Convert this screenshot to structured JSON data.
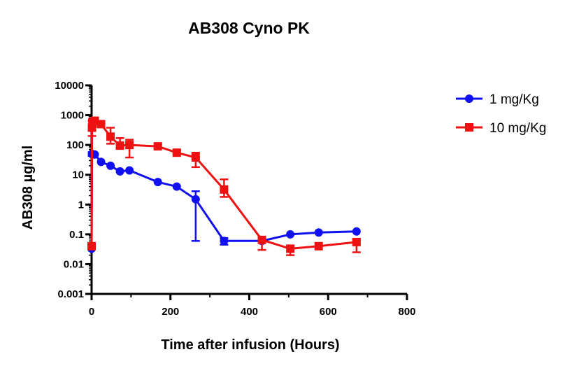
{
  "chart_data": {
    "type": "line",
    "title": "AB308 Cyno PK",
    "xlabel": "Time after infusion (Hours)",
    "ylabel": "AB308 µg/ml",
    "xlim": [
      0,
      800
    ],
    "ylim": [
      0.001,
      10000
    ],
    "yscale": "log",
    "x_ticks": [
      0,
      200,
      400,
      600,
      800
    ],
    "x_tick_labels": [
      "0",
      "200",
      "400",
      "600",
      "800"
    ],
    "y_ticks": [
      0.001,
      0.01,
      0.1,
      1,
      10,
      100,
      1000,
      10000
    ],
    "y_tick_labels": [
      "0.001",
      "0.01",
      "0.1",
      "1",
      "10",
      "100",
      "1000",
      "10000"
    ],
    "grid": false,
    "legend_position": "right",
    "series": [
      {
        "name": "1 mg/Kg",
        "color": "#1010f0",
        "marker": "circle",
        "points": [
          {
            "x": 0,
            "y": 0.033,
            "lo": null,
            "hi": null
          },
          {
            "x": 1,
            "y": 50,
            "lo": 43,
            "hi": 57
          },
          {
            "x": 8,
            "y": 48,
            "lo": null,
            "hi": null
          },
          {
            "x": 24,
            "y": 27,
            "lo": null,
            "hi": null
          },
          {
            "x": 48,
            "y": 20,
            "lo": null,
            "hi": null
          },
          {
            "x": 72,
            "y": 13,
            "lo": null,
            "hi": null
          },
          {
            "x": 96,
            "y": 14,
            "lo": null,
            "hi": null
          },
          {
            "x": 168,
            "y": 5.7,
            "lo": null,
            "hi": null
          },
          {
            "x": 216,
            "y": 4,
            "lo": null,
            "hi": null
          },
          {
            "x": 264,
            "y": 1.5,
            "lo": 0.06,
            "hi": 2.8
          },
          {
            "x": 336,
            "y": 0.06,
            "lo": 0.045,
            "hi": 0.075
          },
          {
            "x": 432,
            "y": 0.06,
            "lo": null,
            "hi": null
          },
          {
            "x": 504,
            "y": 0.1,
            "lo": null,
            "hi": null
          },
          {
            "x": 576,
            "y": 0.115,
            "lo": null,
            "hi": null
          },
          {
            "x": 672,
            "y": 0.125,
            "lo": null,
            "hi": null
          }
        ]
      },
      {
        "name": "10 mg/Kg",
        "color": "#ee1111",
        "marker": "square",
        "points": [
          {
            "x": 0,
            "y": 0.04,
            "lo": null,
            "hi": null
          },
          {
            "x": 1,
            "y": 380,
            "lo": 200,
            "hi": 650
          },
          {
            "x": 2,
            "y": 550,
            "lo": 400,
            "hi": 750
          },
          {
            "x": 8,
            "y": 650,
            "lo": 500,
            "hi": 800
          },
          {
            "x": 24,
            "y": 500,
            "lo": 400,
            "hi": 600
          },
          {
            "x": 48,
            "y": 190,
            "lo": 110,
            "hi": 380
          },
          {
            "x": 72,
            "y": 95,
            "lo": 75,
            "hi": 170
          },
          {
            "x": 96,
            "y": 100,
            "lo": 38,
            "hi": 150
          },
          {
            "x": 168,
            "y": 90,
            "lo": 75,
            "hi": 105
          },
          {
            "x": 216,
            "y": 55,
            "lo": 50,
            "hi": 65
          },
          {
            "x": 264,
            "y": 38,
            "lo": 18,
            "hi": 55
          },
          {
            "x": 336,
            "y": 3.2,
            "lo": 1.8,
            "hi": 7
          },
          {
            "x": 432,
            "y": 0.065,
            "lo": 0.03,
            "hi": 0.08
          },
          {
            "x": 504,
            "y": 0.033,
            "lo": 0.02,
            "hi": 0.04
          },
          {
            "x": 576,
            "y": 0.04,
            "lo": null,
            "hi": null
          },
          {
            "x": 672,
            "y": 0.055,
            "lo": 0.025,
            "hi": 0.07
          }
        ]
      }
    ]
  }
}
